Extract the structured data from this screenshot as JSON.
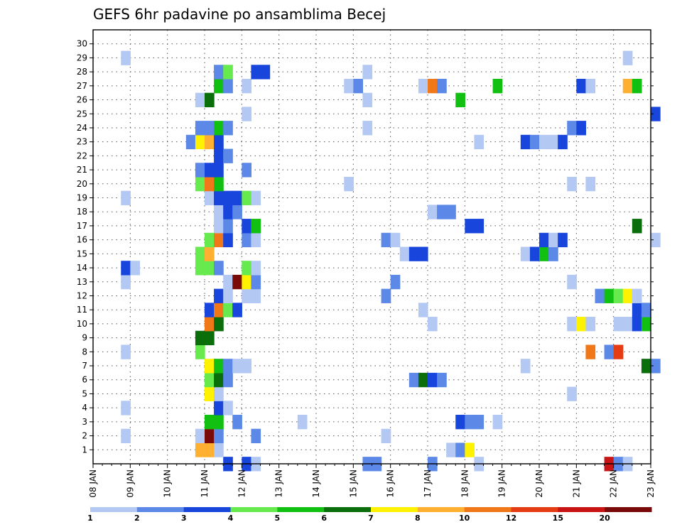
{
  "chart_data": {
    "type": "heatmap",
    "title": "GEFS 6hr padavine po ansamblima Becej",
    "xlabel": "",
    "ylabel": "",
    "x_ticks": [
      "08 JAN",
      "09 JAN",
      "10 JAN",
      "11 JAN",
      "12 JAN",
      "13 JAN",
      "14 JAN",
      "15 JAN",
      "16 JAN",
      "17 JAN",
      "18 JAN",
      "19 JAN",
      "20 JAN",
      "21 JAN",
      "22 JAN",
      "23 JAN"
    ],
    "y_ticks": [
      "1",
      "2",
      "3",
      "4",
      "5",
      "6",
      "7",
      "8",
      "9",
      "10",
      "11",
      "12",
      "13",
      "14",
      "15",
      "16",
      "17",
      "18",
      "19",
      "20",
      "21",
      "22",
      "23",
      "24",
      "25",
      "26",
      "27",
      "28",
      "29",
      "30"
    ],
    "xlim": [
      "08 JAN",
      "23 JAN"
    ],
    "ylim": [
      0,
      30
    ],
    "time_step_hours": 6,
    "grid": true,
    "colorbar": {
      "position": "bottom",
      "labels": [
        "1",
        "2",
        "3",
        "4",
        "5",
        "6",
        "7",
        "8",
        "10",
        "12",
        "15",
        "20"
      ],
      "colors": [
        "#b4c8f4",
        "#5c88e8",
        "#1845dc",
        "#66ea4e",
        "#12c012",
        "#0a6e0a",
        "#fff200",
        "#ffb030",
        "#f07818",
        "#e63c14",
        "#c81414",
        "#7a0a0a"
      ]
    },
    "cells": [
      [
        "11 JAN 12Z",
        0,
        3
      ],
      [
        "12 JAN 00Z",
        0,
        3
      ],
      [
        "12 JAN 06Z",
        0,
        1
      ],
      [
        "15 JAN 06Z",
        0,
        2
      ],
      [
        "15 JAN 12Z",
        0,
        2
      ],
      [
        "17 JAN 00Z",
        0,
        2
      ],
      [
        "18 JAN 06Z",
        0,
        1
      ],
      [
        "21 JAN 18Z",
        0,
        11
      ],
      [
        "22 JAN 00Z",
        0,
        2
      ],
      [
        "22 JAN 06Z",
        0,
        1
      ],
      [
        "10 JAN 18Z",
        1,
        8
      ],
      [
        "11 JAN 00Z",
        1,
        8
      ],
      [
        "11 JAN 06Z",
        1,
        1
      ],
      [
        "17 JAN 12Z",
        1,
        1
      ],
      [
        "17 JAN 18Z",
        1,
        2
      ],
      [
        "18 JAN 00Z",
        1,
        7
      ],
      [
        "08 JAN 18Z",
        2,
        1
      ],
      [
        "10 JAN 18Z",
        2,
        1
      ],
      [
        "11 JAN 00Z",
        2,
        12
      ],
      [
        "11 JAN 06Z",
        2,
        2
      ],
      [
        "12 JAN 06Z",
        2,
        2
      ],
      [
        "15 JAN 18Z",
        2,
        1
      ],
      [
        "11 JAN 00Z",
        3,
        5
      ],
      [
        "11 JAN 06Z",
        3,
        5
      ],
      [
        "11 JAN 18Z",
        3,
        2
      ],
      [
        "13 JAN 12Z",
        3,
        1
      ],
      [
        "17 JAN 18Z",
        3,
        3
      ],
      [
        "18 JAN 00Z",
        3,
        2
      ],
      [
        "18 JAN 06Z",
        3,
        2
      ],
      [
        "18 JAN 18Z",
        3,
        1
      ],
      [
        "08 JAN 18Z",
        4,
        1
      ],
      [
        "11 JAN 06Z",
        4,
        3
      ],
      [
        "11 JAN 12Z",
        4,
        1
      ],
      [
        "11 JAN 00Z",
        5,
        7
      ],
      [
        "11 JAN 06Z",
        5,
        1
      ],
      [
        "20 JAN 18Z",
        5,
        1
      ],
      [
        "11 JAN 00Z",
        6,
        4
      ],
      [
        "11 JAN 06Z",
        6,
        6
      ],
      [
        "11 JAN 12Z",
        6,
        2
      ],
      [
        "16 JAN 12Z",
        6,
        2
      ],
      [
        "16 JAN 18Z",
        6,
        6
      ],
      [
        "17 JAN 00Z",
        6,
        3
      ],
      [
        "17 JAN 06Z",
        6,
        2
      ],
      [
        "11 JAN 00Z",
        7,
        7
      ],
      [
        "11 JAN 06Z",
        7,
        5
      ],
      [
        "11 JAN 12Z",
        7,
        2
      ],
      [
        "11 JAN 18Z",
        7,
        1
      ],
      [
        "12 JAN 00Z",
        7,
        1
      ],
      [
        "19 JAN 12Z",
        7,
        1
      ],
      [
        "22 JAN 18Z",
        7,
        6
      ],
      [
        "23 JAN 00Z",
        7,
        2
      ],
      [
        "08 JAN 18Z",
        8,
        1
      ],
      [
        "10 JAN 18Z",
        8,
        4
      ],
      [
        "21 JAN 06Z",
        8,
        9
      ],
      [
        "21 JAN 18Z",
        8,
        2
      ],
      [
        "22 JAN 00Z",
        8,
        10
      ],
      [
        "10 JAN 18Z",
        9,
        6
      ],
      [
        "11 JAN 00Z",
        9,
        6
      ],
      [
        "11 JAN 00Z",
        10,
        9
      ],
      [
        "11 JAN 06Z",
        10,
        6
      ],
      [
        "17 JAN 00Z",
        10,
        1
      ],
      [
        "20 JAN 18Z",
        10,
        1
      ],
      [
        "21 JAN 00Z",
        10,
        7
      ],
      [
        "21 JAN 06Z",
        10,
        1
      ],
      [
        "22 JAN 00Z",
        10,
        1
      ],
      [
        "22 JAN 06Z",
        10,
        1
      ],
      [
        "22 JAN 12Z",
        10,
        3
      ],
      [
        "22 JAN 18Z",
        10,
        5
      ],
      [
        "11 JAN 00Z",
        11,
        3
      ],
      [
        "11 JAN 06Z",
        11,
        9
      ],
      [
        "11 JAN 12Z",
        11,
        4
      ],
      [
        "11 JAN 18Z",
        11,
        3
      ],
      [
        "16 JAN 18Z",
        11,
        1
      ],
      [
        "22 JAN 12Z",
        11,
        3
      ],
      [
        "22 JAN 18Z",
        11,
        2
      ],
      [
        "11 JAN 06Z",
        12,
        3
      ],
      [
        "11 JAN 12Z",
        12,
        1
      ],
      [
        "12 JAN 00Z",
        12,
        1
      ],
      [
        "12 JAN 06Z",
        12,
        1
      ],
      [
        "15 JAN 18Z",
        12,
        2
      ],
      [
        "21 JAN 12Z",
        12,
        2
      ],
      [
        "21 JAN 18Z",
        12,
        5
      ],
      [
        "22 JAN 00Z",
        12,
        4
      ],
      [
        "22 JAN 06Z",
        12,
        7
      ],
      [
        "22 JAN 12Z",
        12,
        1
      ],
      [
        "08 JAN 18Z",
        13,
        1
      ],
      [
        "11 JAN 12Z",
        13,
        1
      ],
      [
        "11 JAN 18Z",
        13,
        12
      ],
      [
        "12 JAN 00Z",
        13,
        7
      ],
      [
        "12 JAN 06Z",
        13,
        2
      ],
      [
        "16 JAN 00Z",
        13,
        2
      ],
      [
        "20 JAN 18Z",
        13,
        1
      ],
      [
        "08 JAN 18Z",
        14,
        3
      ],
      [
        "09 JAN 00Z",
        14,
        1
      ],
      [
        "10 JAN 18Z",
        14,
        4
      ],
      [
        "11 JAN 00Z",
        14,
        4
      ],
      [
        "11 JAN 06Z",
        14,
        2
      ],
      [
        "12 JAN 00Z",
        14,
        4
      ],
      [
        "12 JAN 06Z",
        14,
        1
      ],
      [
        "10 JAN 18Z",
        15,
        4
      ],
      [
        "11 JAN 00Z",
        15,
        8
      ],
      [
        "16 JAN 06Z",
        15,
        1
      ],
      [
        "16 JAN 12Z",
        15,
        3
      ],
      [
        "16 JAN 18Z",
        15,
        3
      ],
      [
        "19 JAN 12Z",
        15,
        1
      ],
      [
        "19 JAN 18Z",
        15,
        3
      ],
      [
        "20 JAN 00Z",
        15,
        5
      ],
      [
        "20 JAN 06Z",
        15,
        2
      ],
      [
        "11 JAN 00Z",
        16,
        4
      ],
      [
        "11 JAN 06Z",
        16,
        9
      ],
      [
        "11 JAN 12Z",
        16,
        3
      ],
      [
        "12 JAN 00Z",
        16,
        2
      ],
      [
        "12 JAN 06Z",
        16,
        1
      ],
      [
        "15 JAN 18Z",
        16,
        2
      ],
      [
        "16 JAN 00Z",
        16,
        1
      ],
      [
        "20 JAN 00Z",
        16,
        3
      ],
      [
        "20 JAN 06Z",
        16,
        1
      ],
      [
        "20 JAN 12Z",
        16,
        3
      ],
      [
        "23 JAN 00Z",
        16,
        1
      ],
      [
        "11 JAN 06Z",
        17,
        1
      ],
      [
        "11 JAN 12Z",
        17,
        2
      ],
      [
        "12 JAN 00Z",
        17,
        3
      ],
      [
        "12 JAN 06Z",
        17,
        5
      ],
      [
        "18 JAN 00Z",
        17,
        3
      ],
      [
        "18 JAN 06Z",
        17,
        3
      ],
      [
        "22 JAN 12Z",
        17,
        6
      ],
      [
        "11 JAN 06Z",
        18,
        1
      ],
      [
        "11 JAN 12Z",
        18,
        3
      ],
      [
        "11 JAN 18Z",
        18,
        2
      ],
      [
        "17 JAN 00Z",
        18,
        1
      ],
      [
        "17 JAN 06Z",
        18,
        2
      ],
      [
        "17 JAN 12Z",
        18,
        2
      ],
      [
        "08 JAN 18Z",
        19,
        1
      ],
      [
        "11 JAN 00Z",
        19,
        1
      ],
      [
        "11 JAN 06Z",
        19,
        3
      ],
      [
        "11 JAN 12Z",
        19,
        3
      ],
      [
        "11 JAN 18Z",
        19,
        3
      ],
      [
        "12 JAN 00Z",
        19,
        4
      ],
      [
        "12 JAN 06Z",
        19,
        1
      ],
      [
        "10 JAN 18Z",
        20,
        4
      ],
      [
        "11 JAN 00Z",
        20,
        9
      ],
      [
        "11 JAN 06Z",
        20,
        5
      ],
      [
        "14 JAN 18Z",
        20,
        1
      ],
      [
        "20 JAN 18Z",
        20,
        1
      ],
      [
        "21 JAN 06Z",
        20,
        1
      ],
      [
        "10 JAN 18Z",
        21,
        2
      ],
      [
        "11 JAN 00Z",
        21,
        3
      ],
      [
        "11 JAN 06Z",
        21,
        3
      ],
      [
        "12 JAN 00Z",
        21,
        2
      ],
      [
        "11 JAN 06Z",
        22,
        3
      ],
      [
        "11 JAN 12Z",
        22,
        2
      ],
      [
        "10 JAN 12Z",
        23,
        2
      ],
      [
        "10 JAN 18Z",
        23,
        7
      ],
      [
        "11 JAN 00Z",
        23,
        8
      ],
      [
        "11 JAN 06Z",
        23,
        3
      ],
      [
        "18 JAN 06Z",
        23,
        1
      ],
      [
        "19 JAN 12Z",
        23,
        3
      ],
      [
        "19 JAN 18Z",
        23,
        2
      ],
      [
        "20 JAN 00Z",
        23,
        1
      ],
      [
        "20 JAN 06Z",
        23,
        1
      ],
      [
        "20 JAN 12Z",
        23,
        3
      ],
      [
        "10 JAN 18Z",
        24,
        2
      ],
      [
        "11 JAN 00Z",
        24,
        2
      ],
      [
        "11 JAN 06Z",
        24,
        5
      ],
      [
        "11 JAN 12Z",
        24,
        2
      ],
      [
        "15 JAN 06Z",
        24,
        1
      ],
      [
        "20 JAN 18Z",
        24,
        2
      ],
      [
        "21 JAN 00Z",
        24,
        3
      ],
      [
        "12 JAN 00Z",
        25,
        1
      ],
      [
        "23 JAN 00Z",
        25,
        3
      ],
      [
        "10 JAN 18Z",
        26,
        1
      ],
      [
        "11 JAN 00Z",
        26,
        6
      ],
      [
        "15 JAN 06Z",
        26,
        1
      ],
      [
        "17 JAN 18Z",
        26,
        5
      ],
      [
        "11 JAN 06Z",
        27,
        5
      ],
      [
        "11 JAN 12Z",
        27,
        2
      ],
      [
        "12 JAN 00Z",
        27,
        1
      ],
      [
        "14 JAN 18Z",
        27,
        1
      ],
      [
        "15 JAN 00Z",
        27,
        2
      ],
      [
        "16 JAN 18Z",
        27,
        1
      ],
      [
        "17 JAN 00Z",
        27,
        9
      ],
      [
        "17 JAN 06Z",
        27,
        2
      ],
      [
        "18 JAN 18Z",
        27,
        5
      ],
      [
        "21 JAN 00Z",
        27,
        3
      ],
      [
        "21 JAN 06Z",
        27,
        1
      ],
      [
        "22 JAN 06Z",
        27,
        8
      ],
      [
        "22 JAN 12Z",
        27,
        5
      ],
      [
        "11 JAN 06Z",
        28,
        2
      ],
      [
        "11 JAN 12Z",
        28,
        4
      ],
      [
        "12 JAN 06Z",
        28,
        3
      ],
      [
        "12 JAN 12Z",
        28,
        3
      ],
      [
        "15 JAN 06Z",
        28,
        1
      ],
      [
        "08 JAN 18Z",
        29,
        1
      ],
      [
        "22 JAN 06Z",
        29,
        1
      ]
    ]
  }
}
